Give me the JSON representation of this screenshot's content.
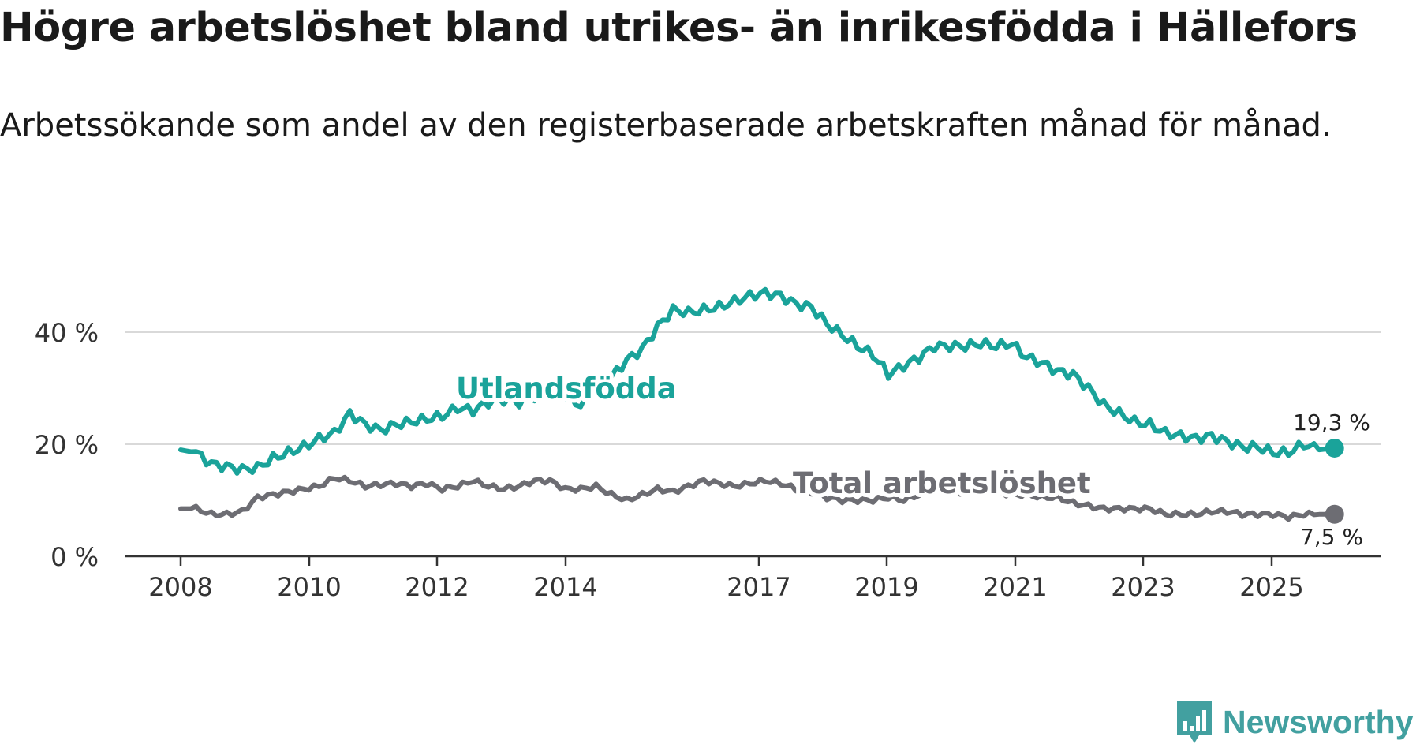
{
  "title": "Högre arbetslöshet bland utrikes- än inrikesfödda i Hällefors",
  "subtitle": "Arbetssökande som andel av den registerbaserade arbetskraften månad för månad.",
  "brand": {
    "name": "Newsworthy",
    "color": "#42a0a0",
    "icon": "newsworthy-logo-icon"
  },
  "chart_data": {
    "type": "line",
    "title": "Högre arbetslöshet bland utrikes- än inrikesfödda i Hällefors",
    "xlabel": "",
    "ylabel": "",
    "x_start": 2008.0,
    "x_step_months": 1,
    "ylim": [
      0,
      50
    ],
    "grid": true,
    "y_ticks": [
      0,
      20,
      40
    ],
    "y_tick_labels": [
      "0 %",
      "20 %",
      "40 %"
    ],
    "x_ticks": [
      2008,
      2010,
      2012,
      2014,
      2017,
      2019,
      2021,
      2023,
      2025
    ],
    "x_tick_labels": [
      "2008",
      "2010",
      "2012",
      "2014",
      "2017",
      "2019",
      "2021",
      "2023",
      "2025"
    ],
    "series": [
      {
        "name": "Utlandsfödda",
        "color": "#1aa39a",
        "end_label": "19,3 %",
        "key_points": [
          [
            2008.0,
            19.0
          ],
          [
            2008.25,
            18.5
          ],
          [
            2008.5,
            16.5
          ],
          [
            2008.75,
            16.0
          ],
          [
            2009.0,
            15.5
          ],
          [
            2009.25,
            15.8
          ],
          [
            2009.5,
            17.5
          ],
          [
            2009.75,
            18.5
          ],
          [
            2010.0,
            19.5
          ],
          [
            2010.25,
            21.0
          ],
          [
            2010.5,
            22.0
          ],
          [
            2010.75,
            25.5
          ],
          [
            2011.0,
            23.5
          ],
          [
            2011.25,
            22.5
          ],
          [
            2011.5,
            23.5
          ],
          [
            2011.75,
            24.0
          ],
          [
            2012.0,
            24.5
          ],
          [
            2012.25,
            25.0
          ],
          [
            2012.5,
            26.5
          ],
          [
            2012.75,
            26.0
          ],
          [
            2013.0,
            27.5
          ],
          [
            2013.25,
            28.0
          ],
          [
            2013.5,
            27.5
          ],
          [
            2013.75,
            28.5
          ],
          [
            2014.0,
            29.0
          ],
          [
            2014.25,
            28.5
          ],
          [
            2014.5,
            27.0
          ],
          [
            2014.75,
            29.5
          ],
          [
            2015.0,
            32.0
          ],
          [
            2015.25,
            35.0
          ],
          [
            2015.5,
            37.0
          ],
          [
            2015.75,
            41.0
          ],
          [
            2016.0,
            44.0
          ],
          [
            2016.25,
            43.5
          ],
          [
            2016.5,
            44.0
          ],
          [
            2016.75,
            44.5
          ],
          [
            2017.0,
            45.5
          ],
          [
            2017.25,
            46.5
          ],
          [
            2017.5,
            47.0
          ],
          [
            2017.75,
            46.5
          ],
          [
            2018.0,
            45.0
          ],
          [
            2018.25,
            44.5
          ],
          [
            2018.5,
            41.5
          ],
          [
            2018.75,
            39.5
          ],
          [
            2019.0,
            37.5
          ],
          [
            2019.25,
            36.0
          ],
          [
            2019.5,
            32.5
          ],
          [
            2019.75,
            34.0
          ],
          [
            2020.0,
            35.5
          ],
          [
            2020.25,
            37.5
          ],
          [
            2020.5,
            37.5
          ],
          [
            2020.75,
            37.5
          ],
          [
            2021.0,
            38.0
          ],
          [
            2021.25,
            37.5
          ],
          [
            2021.5,
            38.0
          ],
          [
            2021.75,
            35.5
          ],
          [
            2022.0,
            34.5
          ],
          [
            2022.25,
            33.0
          ],
          [
            2022.5,
            32.5
          ],
          [
            2022.75,
            30.0
          ],
          [
            2023.0,
            27.0
          ],
          [
            2023.25,
            25.5
          ],
          [
            2023.5,
            24.0
          ],
          [
            2023.75,
            23.5
          ],
          [
            2024.0,
            22.0
          ],
          [
            2024.25,
            21.5
          ],
          [
            2024.5,
            21.0
          ],
          [
            2024.75,
            21.5
          ],
          [
            2025.0,
            20.5
          ],
          [
            2025.25,
            19.5
          ],
          [
            2025.5,
            19.5
          ],
          [
            2025.75,
            18.5
          ],
          [
            2026.0,
            18.5
          ],
          [
            2026.25,
            20.0
          ],
          [
            2026.5,
            19.0
          ],
          [
            2026.75,
            19.3
          ]
        ]
      },
      {
        "name": "Total arbetslöshet",
        "color": "#6d6d73",
        "end_label": "7,5 %",
        "key_points": [
          [
            2008.0,
            8.5
          ],
          [
            2008.25,
            8.5
          ],
          [
            2008.5,
            7.5
          ],
          [
            2008.75,
            7.5
          ],
          [
            2009.0,
            8.0
          ],
          [
            2009.25,
            10.5
          ],
          [
            2009.5,
            11.0
          ],
          [
            2009.75,
            11.5
          ],
          [
            2010.0,
            12.0
          ],
          [
            2010.25,
            12.5
          ],
          [
            2010.5,
            14.0
          ],
          [
            2010.75,
            13.5
          ],
          [
            2011.0,
            12.5
          ],
          [
            2011.25,
            12.8
          ],
          [
            2011.5,
            13.0
          ],
          [
            2011.75,
            12.5
          ],
          [
            2012.0,
            13.0
          ],
          [
            2012.25,
            12.0
          ],
          [
            2012.5,
            12.5
          ],
          [
            2012.75,
            13.5
          ],
          [
            2013.0,
            12.5
          ],
          [
            2013.25,
            12.0
          ],
          [
            2013.5,
            12.5
          ],
          [
            2013.75,
            13.5
          ],
          [
            2014.0,
            13.5
          ],
          [
            2014.25,
            12.0
          ],
          [
            2014.5,
            12.0
          ],
          [
            2014.75,
            12.5
          ],
          [
            2015.0,
            11.0
          ],
          [
            2015.25,
            10.0
          ],
          [
            2015.5,
            11.0
          ],
          [
            2015.75,
            12.0
          ],
          [
            2016.0,
            11.5
          ],
          [
            2016.25,
            12.5
          ],
          [
            2016.5,
            13.5
          ],
          [
            2016.75,
            13.0
          ],
          [
            2017.0,
            12.5
          ],
          [
            2017.25,
            13.0
          ],
          [
            2017.5,
            13.5
          ],
          [
            2017.75,
            13.0
          ],
          [
            2018.0,
            12.0
          ],
          [
            2018.25,
            11.5
          ],
          [
            2018.5,
            10.5
          ],
          [
            2018.75,
            10.0
          ],
          [
            2019.0,
            10.0
          ],
          [
            2019.25,
            10.0
          ],
          [
            2019.5,
            10.5
          ],
          [
            2019.75,
            10.0
          ],
          [
            2020.0,
            11.0
          ],
          [
            2020.25,
            12.0
          ],
          [
            2020.5,
            11.5
          ],
          [
            2020.75,
            11.5
          ],
          [
            2021.0,
            12.0
          ],
          [
            2021.25,
            11.5
          ],
          [
            2021.5,
            11.0
          ],
          [
            2021.75,
            11.0
          ],
          [
            2022.0,
            10.5
          ],
          [
            2022.25,
            10.5
          ],
          [
            2022.5,
            9.5
          ],
          [
            2022.75,
            9.0
          ],
          [
            2023.0,
            8.5
          ],
          [
            2023.25,
            8.5
          ],
          [
            2023.5,
            8.5
          ],
          [
            2023.75,
            8.5
          ],
          [
            2024.0,
            7.5
          ],
          [
            2024.25,
            7.5
          ],
          [
            2024.5,
            7.5
          ],
          [
            2024.75,
            8.0
          ],
          [
            2025.0,
            8.0
          ],
          [
            2025.25,
            7.5
          ],
          [
            2025.5,
            7.5
          ],
          [
            2025.75,
            7.5
          ],
          [
            2026.0,
            7.0
          ],
          [
            2026.25,
            7.5
          ],
          [
            2026.5,
            7.5
          ],
          [
            2026.75,
            7.5
          ]
        ]
      }
    ]
  }
}
